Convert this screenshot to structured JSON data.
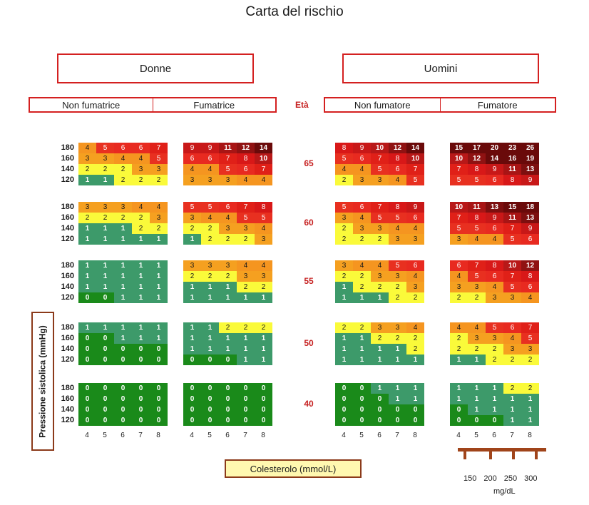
{
  "title": "Carta del rischio",
  "groups": [
    "Donne",
    "Uomini"
  ],
  "subgroups": [
    "Non fumatrice",
    "Fumatrice",
    "Non fumatore",
    "Fumatore"
  ],
  "eta_label": "Età",
  "ages": [
    "65",
    "60",
    "55",
    "50",
    "40"
  ],
  "pressures": [
    "180",
    "160",
    "140",
    "120"
  ],
  "x_ticks": [
    "4",
    "5",
    "6",
    "7",
    "8"
  ],
  "y_axis_label": "Pressione sistolica (mmHg)",
  "x_axis_label": "Colesterolo (mmol/L)",
  "mg_ticks": [
    "150",
    "200",
    "250",
    "300"
  ],
  "mg_unit": "mg/dL",
  "colors": {
    "0": "#1a8a1a",
    "1": "#3d9a6a",
    "2": "#fafa3a",
    "3": "#f5a020",
    "4": "#f59520",
    "5": "#e83020",
    "6": "#e82a20",
    "7": "#e02018",
    "8": "#d81818",
    "9": "#c81818",
    "10": "#b81818",
    "11": "#a81515",
    "12": "#901212",
    "13": "#7d0f0f",
    "high": "#6a0a0a",
    "accent_red": "#c62020",
    "ruler": "#a0441a"
  },
  "chart_data": {
    "type": "heatmap",
    "title": "Carta del rischio",
    "xlabel": "Colesterolo (mmol/L)",
    "ylabel": "Pressione sistolica (mmHg)",
    "x": [
      4,
      5,
      6,
      7,
      8
    ],
    "y": [
      180,
      160,
      140,
      120
    ],
    "panels": [
      {
        "group": "Donne",
        "smoking": "Non fumatrice",
        "ages": {
          "65": [
            [
              4,
              5,
              6,
              6,
              7
            ],
            [
              3,
              3,
              4,
              4,
              5
            ],
            [
              2,
              2,
              2,
              3,
              3
            ],
            [
              1,
              1,
              2,
              2,
              2
            ]
          ],
          "60": [
            [
              3,
              3,
              3,
              4,
              4
            ],
            [
              2,
              2,
              2,
              2,
              3
            ],
            [
              1,
              1,
              1,
              2,
              2
            ],
            [
              1,
              1,
              1,
              1,
              1
            ]
          ],
          "55": [
            [
              1,
              1,
              1,
              1,
              1
            ],
            [
              1,
              1,
              1,
              1,
              1
            ],
            [
              1,
              1,
              1,
              1,
              1
            ],
            [
              0,
              0,
              1,
              1,
              1
            ]
          ],
          "50": [
            [
              1,
              1,
              1,
              1,
              1
            ],
            [
              0,
              0,
              1,
              1,
              1
            ],
            [
              0,
              0,
              0,
              0,
              0
            ],
            [
              0,
              0,
              0,
              0,
              0
            ]
          ],
          "40": [
            [
              0,
              0,
              0,
              0,
              0
            ],
            [
              0,
              0,
              0,
              0,
              0
            ],
            [
              0,
              0,
              0,
              0,
              0
            ],
            [
              0,
              0,
              0,
              0,
              0
            ]
          ]
        }
      },
      {
        "group": "Donne",
        "smoking": "Fumatrice",
        "ages": {
          "65": [
            [
              9,
              9,
              11,
              12,
              14
            ],
            [
              6,
              6,
              7,
              8,
              10
            ],
            [
              4,
              4,
              5,
              6,
              7
            ],
            [
              3,
              3,
              3,
              4,
              4
            ]
          ],
          "60": [
            [
              5,
              5,
              6,
              7,
              8
            ],
            [
              3,
              4,
              4,
              5,
              5
            ],
            [
              2,
              2,
              3,
              3,
              4
            ],
            [
              1,
              2,
              2,
              2,
              3
            ]
          ],
          "55": [
            [
              3,
              3,
              3,
              4,
              4
            ],
            [
              2,
              2,
              2,
              3,
              3
            ],
            [
              1,
              1,
              1,
              2,
              2
            ],
            [
              1,
              1,
              1,
              1,
              1
            ]
          ],
          "50": [
            [
              1,
              1,
              2,
              2,
              2
            ],
            [
              1,
              1,
              1,
              1,
              1
            ],
            [
              1,
              1,
              1,
              1,
              1
            ],
            [
              0,
              0,
              0,
              1,
              1
            ]
          ],
          "40": [
            [
              0,
              0,
              0,
              0,
              0
            ],
            [
              0,
              0,
              0,
              0,
              0
            ],
            [
              0,
              0,
              0,
              0,
              0
            ],
            [
              0,
              0,
              0,
              0,
              0
            ]
          ]
        }
      },
      {
        "group": "Uomini",
        "smoking": "Non fumatore",
        "ages": {
          "65": [
            [
              8,
              9,
              10,
              12,
              14
            ],
            [
              5,
              6,
              7,
              8,
              10
            ],
            [
              4,
              4,
              5,
              6,
              7
            ],
            [
              2,
              3,
              3,
              4,
              5
            ]
          ],
          "60": [
            [
              5,
              6,
              7,
              8,
              9
            ],
            [
              3,
              4,
              5,
              5,
              6
            ],
            [
              2,
              3,
              3,
              4,
              4
            ],
            [
              2,
              2,
              2,
              3,
              3
            ]
          ],
          "55": [
            [
              3,
              4,
              4,
              5,
              6
            ],
            [
              2,
              2,
              3,
              3,
              4
            ],
            [
              1,
              2,
              2,
              2,
              3
            ],
            [
              1,
              1,
              1,
              2,
              2
            ]
          ],
          "50": [
            [
              2,
              2,
              3,
              3,
              4
            ],
            [
              1,
              1,
              2,
              2,
              2
            ],
            [
              1,
              1,
              1,
              1,
              2
            ],
            [
              1,
              1,
              1,
              1,
              1
            ]
          ],
          "40": [
            [
              0,
              0,
              1,
              1,
              1
            ],
            [
              0,
              0,
              0,
              1,
              1
            ],
            [
              0,
              0,
              0,
              0,
              0
            ],
            [
              0,
              0,
              0,
              0,
              0
            ]
          ]
        }
      },
      {
        "group": "Uomini",
        "smoking": "Fumatore",
        "ages": {
          "65": [
            [
              15,
              17,
              20,
              23,
              26
            ],
            [
              10,
              12,
              14,
              16,
              19
            ],
            [
              7,
              8,
              9,
              11,
              13
            ],
            [
              5,
              5,
              6,
              8,
              9
            ]
          ],
          "60": [
            [
              10,
              11,
              13,
              15,
              18
            ],
            [
              7,
              8,
              9,
              11,
              13
            ],
            [
              5,
              5,
              6,
              7,
              9
            ],
            [
              3,
              4,
              4,
              5,
              6
            ]
          ],
          "55": [
            [
              6,
              7,
              8,
              10,
              12
            ],
            [
              4,
              5,
              6,
              7,
              8
            ],
            [
              3,
              3,
              4,
              5,
              6
            ],
            [
              2,
              2,
              3,
              3,
              4
            ]
          ],
          "50": [
            [
              4,
              4,
              5,
              6,
              7
            ],
            [
              2,
              3,
              3,
              4,
              5
            ],
            [
              2,
              2,
              2,
              3,
              3
            ],
            [
              1,
              1,
              2,
              2,
              2
            ]
          ],
          "40": [
            [
              1,
              1,
              1,
              2,
              2
            ],
            [
              1,
              1,
              1,
              1,
              1
            ],
            [
              0,
              1,
              1,
              1,
              1
            ],
            [
              0,
              0,
              0,
              1,
              1
            ]
          ]
        }
      }
    ]
  }
}
